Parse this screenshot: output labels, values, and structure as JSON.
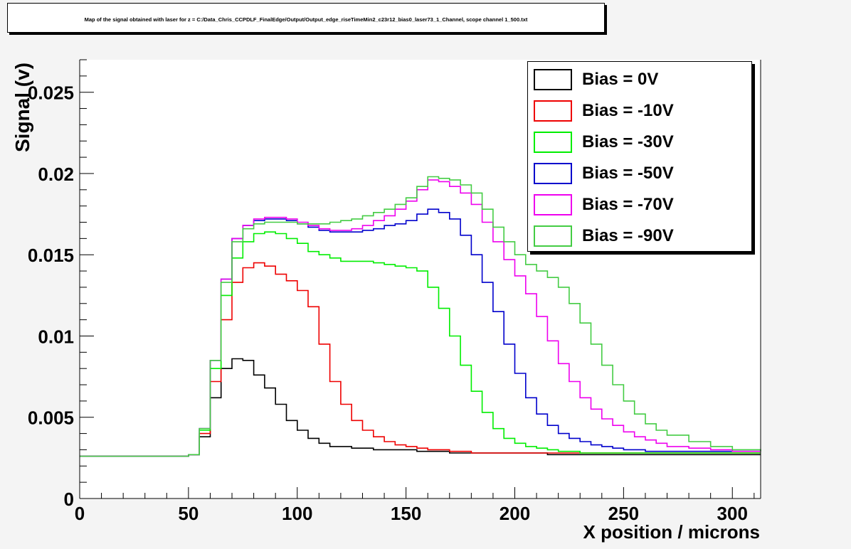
{
  "title": "Map of the signal obtained with laser for z = C:/Data_Chris_CCPDLF_FinalEdge/Output/Output_edge_riseTimeMin2_c23r12_bias0_laser73_1_Channel, scope channel 1_500.txt",
  "chart_data": {
    "type": "line",
    "title": "Map of the signal obtained with laser for z = C:/Data_Chris_CCPDLF_FinalEdge/Output/Output_edge_riseTimeMin2_c23r12_bias0_laser73_1_Channel, scope channel 1_500.txt",
    "xlabel": "X position / microns",
    "ylabel": "Signal (v)",
    "xlim": [
      0,
      313
    ],
    "ylim": [
      0,
      0.027
    ],
    "x_ticks": [
      "0",
      "50",
      "100",
      "150",
      "200",
      "250",
      "300"
    ],
    "y_ticks": [
      "0",
      "0.005",
      "0.01",
      "0.015",
      "0.02",
      "0.025"
    ],
    "x": [
      0,
      10,
      20,
      30,
      40,
      50,
      55,
      60,
      65,
      70,
      75,
      80,
      85,
      90,
      95,
      100,
      105,
      110,
      115,
      120,
      125,
      130,
      135,
      140,
      145,
      150,
      155,
      160,
      165,
      170,
      175,
      180,
      185,
      190,
      195,
      200,
      205,
      210,
      215,
      220,
      225,
      230,
      235,
      240,
      245,
      250,
      255,
      260,
      265,
      270,
      280,
      290,
      300,
      313
    ],
    "series": [
      {
        "name": "Bias = 0V",
        "color": "#000000",
        "values": [
          0.0026,
          0.0026,
          0.0026,
          0.0026,
          0.0026,
          0.0027,
          0.0038,
          0.0062,
          0.008,
          0.0086,
          0.0085,
          0.0076,
          0.0068,
          0.0058,
          0.0048,
          0.0042,
          0.0037,
          0.0034,
          0.0032,
          0.0032,
          0.0031,
          0.0031,
          0.003,
          0.003,
          0.003,
          0.003,
          0.0029,
          0.0029,
          0.0029,
          0.0028,
          0.0028,
          0.0028,
          0.0028,
          0.0028,
          0.0028,
          0.0028,
          0.0028,
          0.0028,
          0.0027,
          0.0027,
          0.0027,
          0.0027,
          0.0027,
          0.0027,
          0.0027,
          0.0027,
          0.0027,
          0.0027,
          0.0027,
          0.0027,
          0.0027,
          0.0027,
          0.0027,
          0.0027
        ]
      },
      {
        "name": "Bias = -10V",
        "color": "#ee0000",
        "values": [
          0.0026,
          0.0026,
          0.0026,
          0.0026,
          0.0026,
          0.0027,
          0.004,
          0.0072,
          0.011,
          0.0133,
          0.0142,
          0.0145,
          0.0143,
          0.0138,
          0.0134,
          0.0128,
          0.0118,
          0.0095,
          0.0072,
          0.0058,
          0.0048,
          0.0042,
          0.0038,
          0.0035,
          0.0033,
          0.0032,
          0.0031,
          0.003,
          0.003,
          0.0029,
          0.0029,
          0.0028,
          0.0028,
          0.0028,
          0.0028,
          0.0028,
          0.0028,
          0.0028,
          0.0028,
          0.0028,
          0.0028,
          0.0028,
          0.0028,
          0.0028,
          0.0028,
          0.0028,
          0.0028,
          0.0028,
          0.0028,
          0.0028,
          0.0028,
          0.0028,
          0.0028,
          0.0028
        ]
      },
      {
        "name": "Bias = -30V",
        "color": "#00ee00",
        "values": [
          0.0026,
          0.0026,
          0.0026,
          0.0026,
          0.0026,
          0.0027,
          0.0042,
          0.008,
          0.0125,
          0.0148,
          0.0158,
          0.0163,
          0.0164,
          0.0163,
          0.016,
          0.0157,
          0.0152,
          0.015,
          0.0148,
          0.0146,
          0.0146,
          0.0146,
          0.0145,
          0.0144,
          0.0143,
          0.0142,
          0.014,
          0.013,
          0.0117,
          0.01,
          0.0082,
          0.0066,
          0.0053,
          0.0043,
          0.0037,
          0.0034,
          0.0032,
          0.0031,
          0.003,
          0.0029,
          0.0029,
          0.0028,
          0.0028,
          0.0028,
          0.0028,
          0.0028,
          0.0028,
          0.0028,
          0.0028,
          0.0028,
          0.0028,
          0.0028,
          0.0028,
          0.0028
        ]
      },
      {
        "name": "Bias = -50V",
        "color": "#0000cc",
        "values": [
          0.0026,
          0.0026,
          0.0026,
          0.0026,
          0.0026,
          0.0027,
          0.0043,
          0.0085,
          0.0135,
          0.016,
          0.0168,
          0.0171,
          0.0172,
          0.0172,
          0.0171,
          0.0169,
          0.0167,
          0.0165,
          0.0164,
          0.0164,
          0.0164,
          0.0165,
          0.0166,
          0.0168,
          0.0169,
          0.0171,
          0.0175,
          0.0178,
          0.0176,
          0.0172,
          0.0162,
          0.015,
          0.0133,
          0.0115,
          0.0095,
          0.0077,
          0.0062,
          0.0052,
          0.0045,
          0.004,
          0.0037,
          0.0035,
          0.0033,
          0.0032,
          0.0031,
          0.003,
          0.003,
          0.0029,
          0.0029,
          0.0029,
          0.0029,
          0.0029,
          0.0029,
          0.0029
        ]
      },
      {
        "name": "Bias = -70V",
        "color": "#ee00ee",
        "values": [
          0.0026,
          0.0026,
          0.0026,
          0.0026,
          0.0026,
          0.0027,
          0.0043,
          0.0085,
          0.0135,
          0.016,
          0.0168,
          0.0172,
          0.0173,
          0.0173,
          0.0172,
          0.017,
          0.0168,
          0.0166,
          0.0165,
          0.0165,
          0.0166,
          0.0168,
          0.0171,
          0.0174,
          0.0178,
          0.0183,
          0.019,
          0.0196,
          0.0195,
          0.0192,
          0.0188,
          0.0181,
          0.017,
          0.0158,
          0.0147,
          0.0137,
          0.0126,
          0.0112,
          0.0097,
          0.0083,
          0.0072,
          0.0062,
          0.0055,
          0.0049,
          0.0045,
          0.0041,
          0.0038,
          0.0036,
          0.0034,
          0.0032,
          0.0031,
          0.003,
          0.0029,
          0.0029
        ]
      },
      {
        "name": "Bias = -90V",
        "color": "#44cc44",
        "values": [
          0.0026,
          0.0026,
          0.0026,
          0.0026,
          0.0026,
          0.0027,
          0.0043,
          0.0085,
          0.0133,
          0.0158,
          0.0166,
          0.0169,
          0.017,
          0.017,
          0.017,
          0.0169,
          0.0169,
          0.0169,
          0.017,
          0.0171,
          0.0172,
          0.0174,
          0.0176,
          0.0178,
          0.0181,
          0.0185,
          0.0192,
          0.0198,
          0.0197,
          0.0196,
          0.0193,
          0.0188,
          0.0178,
          0.0167,
          0.0158,
          0.015,
          0.0144,
          0.014,
          0.0136,
          0.013,
          0.012,
          0.0108,
          0.0095,
          0.0082,
          0.007,
          0.006,
          0.0052,
          0.0046,
          0.0042,
          0.0039,
          0.0035,
          0.0032,
          0.003,
          0.0029
        ]
      }
    ]
  }
}
